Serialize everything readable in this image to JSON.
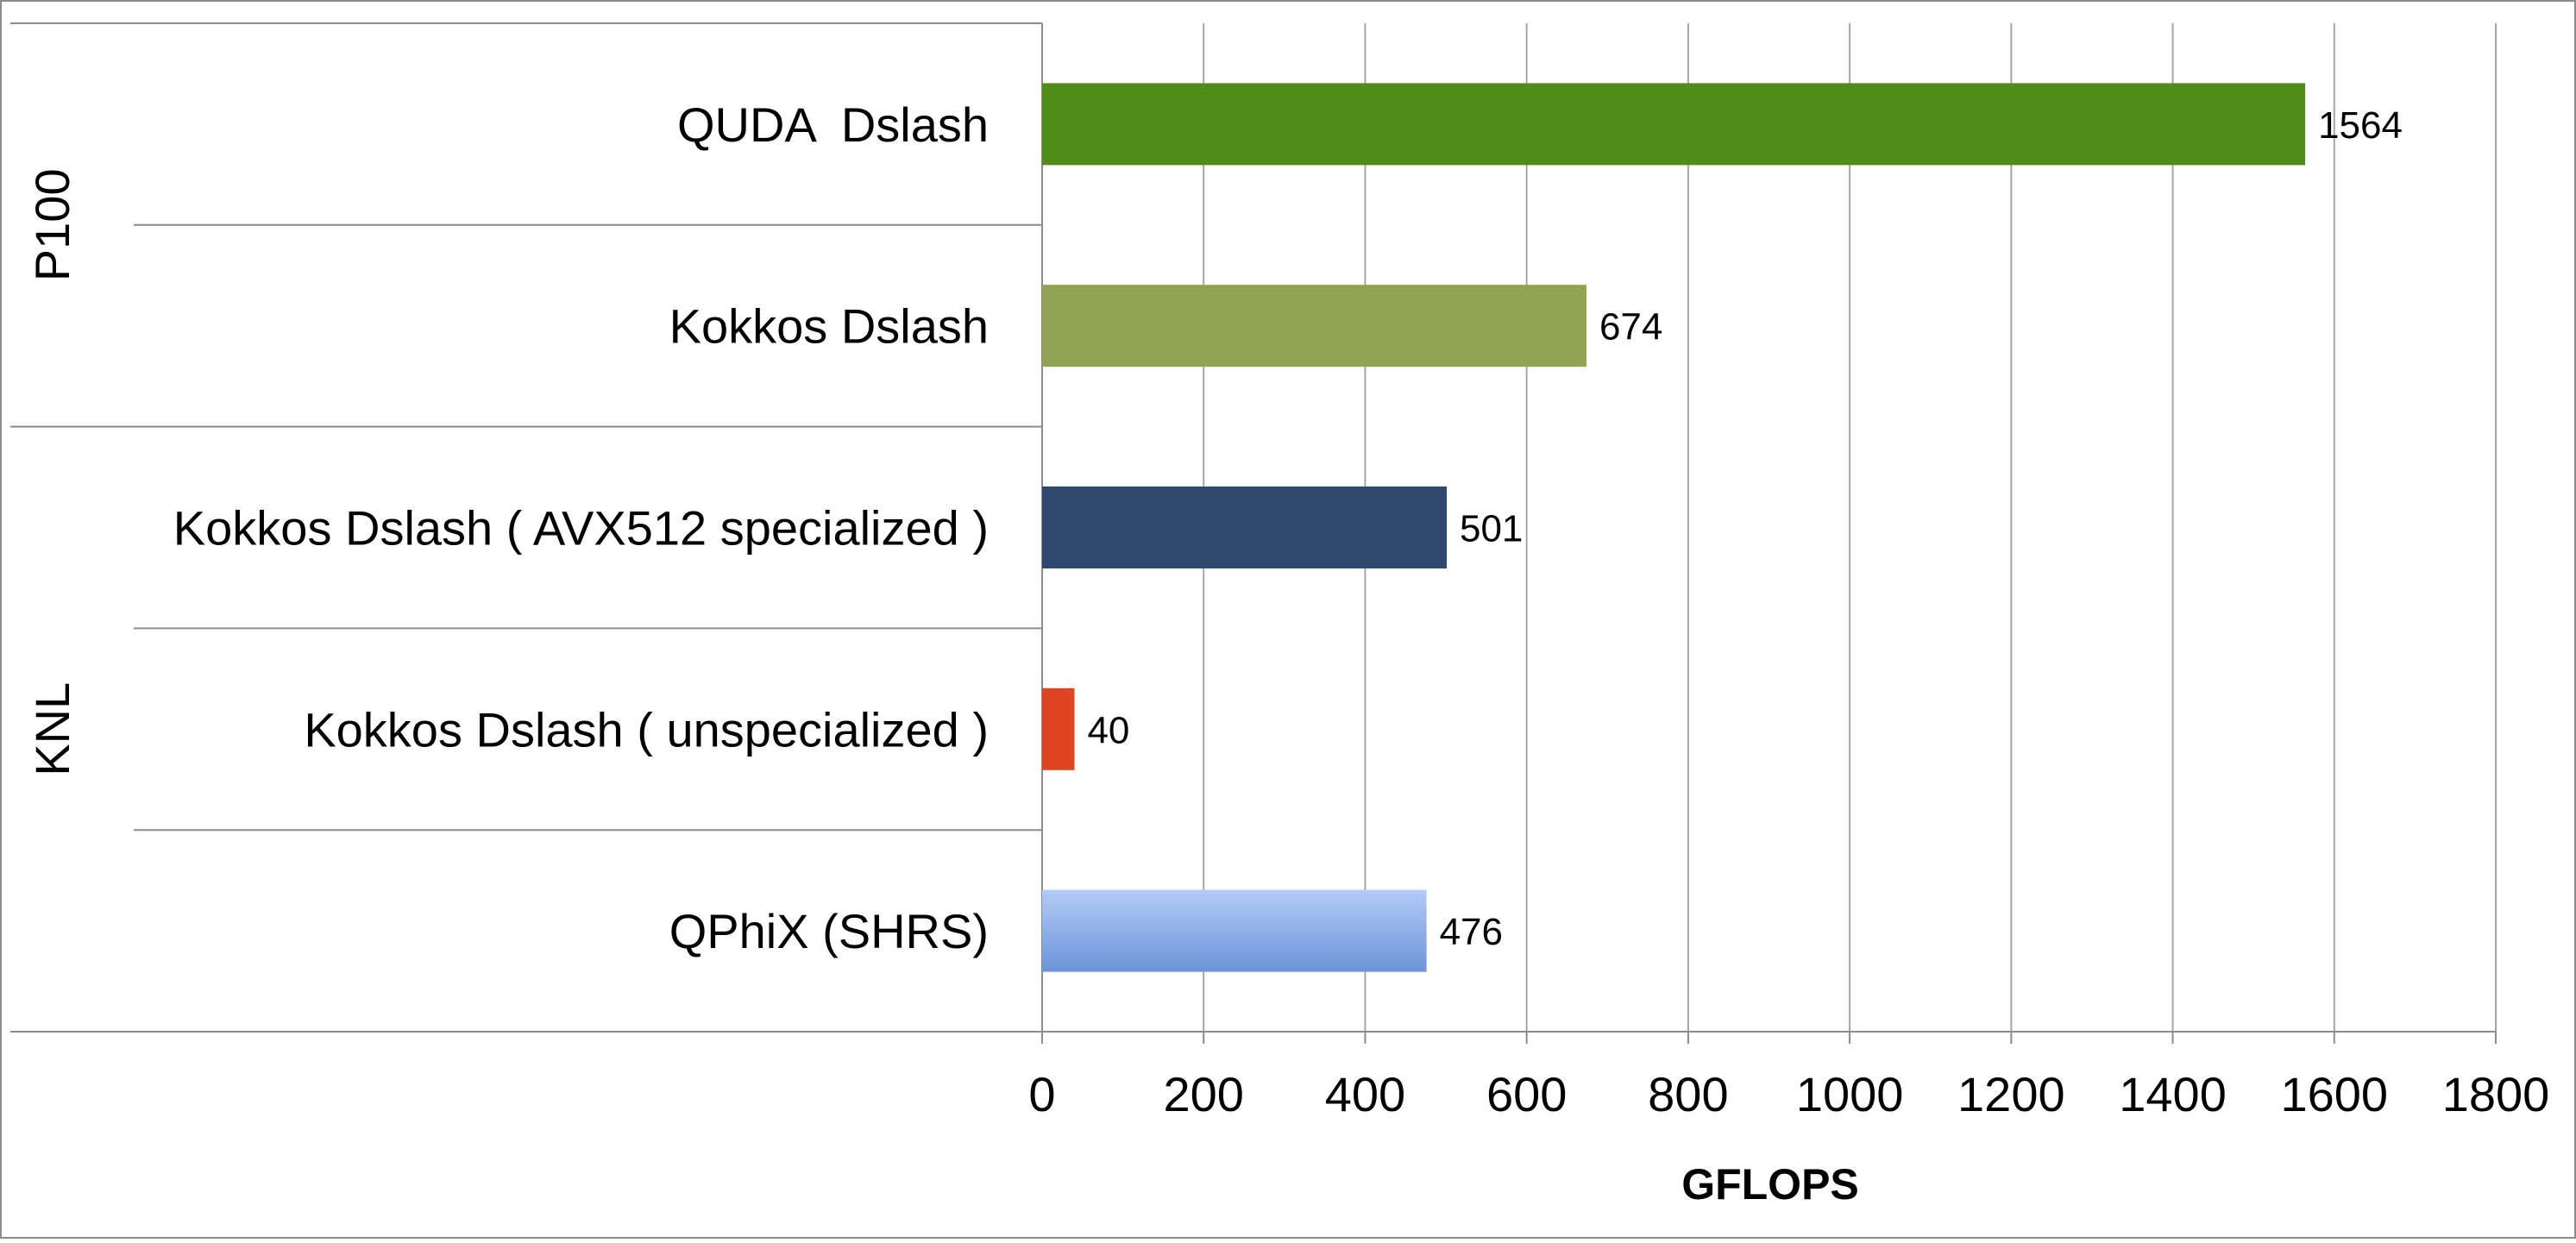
{
  "chart_data": {
    "type": "bar",
    "orientation": "horizontal",
    "categories": [
      "QUDA  Dslash",
      "Kokkos Dslash",
      "Kokkos Dslash ( AVX512 specialized )",
      "Kokkos Dslash ( unspecialized )",
      "QPhiX (SHRS)"
    ],
    "values": [
      1564,
      674,
      501,
      40,
      476
    ],
    "data_labels": [
      "1564",
      "674",
      "501",
      "40",
      "476"
    ],
    "bar_colors": [
      "#4f8c18",
      "#8fa352",
      "#30486e",
      "#dd4522",
      "#86a8e6"
    ],
    "groups": [
      {
        "label": "P100",
        "category_count": 2
      },
      {
        "label": "KNL",
        "category_count": 3
      }
    ],
    "xlabel": "GFLOPS",
    "xlim": [
      0,
      1800
    ],
    "xticks": [
      0,
      200,
      400,
      600,
      800,
      1000,
      1200,
      1400,
      1600,
      1800
    ],
    "xtick_labels": [
      "0",
      "200",
      "400",
      "600",
      "800",
      "1000",
      "1200",
      "1400",
      "1600",
      "1800"
    ],
    "grid": true,
    "legend": "none"
  }
}
